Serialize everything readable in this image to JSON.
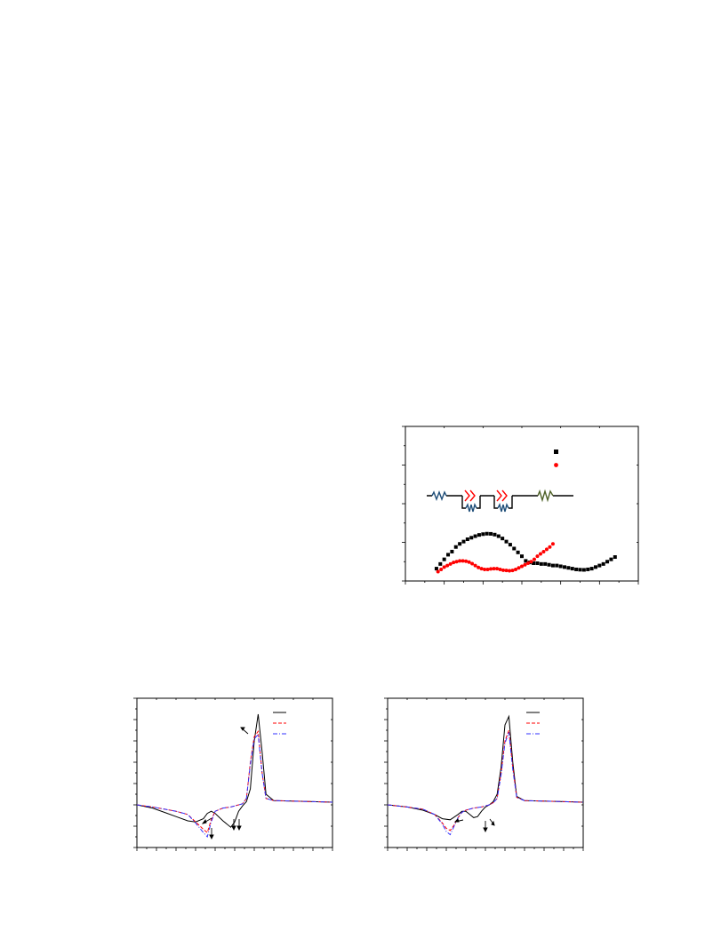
{
  "chart_data": [
    {
      "type": "scatter",
      "xlim": [
        0,
        3.0
      ],
      "ylim": [
        0,
        1.0
      ],
      "series": [
        {
          "color": "#000000",
          "marker": "square",
          "x": [
            0.4,
            0.45,
            0.5,
            0.55,
            0.6,
            0.65,
            0.7,
            0.75,
            0.8,
            0.85,
            0.9,
            0.95,
            1.0,
            1.05,
            1.1,
            1.15,
            1.2,
            1.25,
            1.3,
            1.35,
            1.4,
            1.45,
            1.5,
            1.55,
            1.6,
            1.65,
            1.7,
            1.75,
            1.8,
            1.85,
            1.9,
            1.95,
            2.0,
            2.05,
            2.1,
            2.15,
            2.2,
            2.25,
            2.3,
            2.35,
            2.4,
            2.45,
            2.5,
            2.55,
            2.6,
            2.65,
            2.7
          ],
          "y": [
            0.08,
            0.11,
            0.14,
            0.17,
            0.19,
            0.22,
            0.24,
            0.255,
            0.27,
            0.28,
            0.29,
            0.298,
            0.303,
            0.306,
            0.305,
            0.3,
            0.29,
            0.275,
            0.255,
            0.235,
            0.21,
            0.185,
            0.16,
            0.13,
            0.12,
            0.115,
            0.115,
            0.11,
            0.11,
            0.105,
            0.1,
            0.1,
            0.095,
            0.09,
            0.085,
            0.08,
            0.075,
            0.073,
            0.072,
            0.075,
            0.08,
            0.09,
            0.1,
            0.11,
            0.125,
            0.14,
            0.155
          ]
        },
        {
          "color": "#ff0000",
          "marker": "circle",
          "x": [
            0.42,
            0.46,
            0.5,
            0.54,
            0.58,
            0.62,
            0.66,
            0.7,
            0.74,
            0.78,
            0.82,
            0.86,
            0.9,
            0.94,
            0.98,
            1.02,
            1.06,
            1.1,
            1.14,
            1.18,
            1.22,
            1.26,
            1.3,
            1.34,
            1.38,
            1.42,
            1.46,
            1.5,
            1.54,
            1.58,
            1.62,
            1.66,
            1.7,
            1.74,
            1.78,
            1.82,
            1.86,
            1.9
          ],
          "y": [
            0.06,
            0.075,
            0.09,
            0.1,
            0.11,
            0.12,
            0.125,
            0.13,
            0.13,
            0.128,
            0.122,
            0.112,
            0.1,
            0.088,
            0.08,
            0.075,
            0.075,
            0.078,
            0.08,
            0.08,
            0.075,
            0.07,
            0.068,
            0.066,
            0.068,
            0.075,
            0.085,
            0.095,
            0.105,
            0.115,
            0.125,
            0.14,
            0.16,
            0.175,
            0.19,
            0.205,
            0.22,
            0.24
          ]
        }
      ]
    },
    {
      "type": "line",
      "xlim": [
        0,
        100
      ],
      "ylim": [
        -4,
        10
      ],
      "series": [
        {
          "color": "#000000",
          "style": "solid",
          "x": [
            0,
            8,
            14,
            20,
            26,
            30,
            34,
            36,
            38,
            40,
            44,
            48,
            50,
            52,
            54,
            56,
            58,
            60,
            62,
            64,
            66,
            70,
            80,
            90,
            100
          ],
          "y": [
            0,
            -0.3,
            -0.7,
            -1.1,
            -1.5,
            -1.6,
            -1.3,
            -0.8,
            -0.6,
            -0.8,
            -1.5,
            -2.1,
            -1.6,
            -0.6,
            -0.1,
            0.3,
            1.5,
            6.0,
            8.5,
            5.0,
            1.0,
            0.4,
            0.35,
            0.3,
            0.25
          ]
        },
        {
          "color": "#ff0000",
          "style": "dash",
          "x": [
            0,
            8,
            14,
            20,
            26,
            30,
            34,
            36,
            38,
            40,
            44,
            48,
            50,
            52,
            54,
            56,
            58,
            60,
            62,
            64,
            66,
            70,
            80,
            90,
            100
          ],
          "y": [
            0,
            -0.2,
            -0.4,
            -0.6,
            -0.9,
            -1.6,
            -2.3,
            -2.6,
            -1.4,
            -0.6,
            -0.3,
            -0.2,
            -0.1,
            0.0,
            0.1,
            0.6,
            4.0,
            6.4,
            6.9,
            3.0,
            0.6,
            0.4,
            0.35,
            0.3,
            0.25
          ]
        },
        {
          "color": "#3030ff",
          "style": "dashdot",
          "x": [
            0,
            8,
            14,
            20,
            26,
            30,
            34,
            36,
            38,
            40,
            44,
            48,
            50,
            52,
            54,
            56,
            58,
            60,
            62,
            64,
            66,
            70,
            80,
            90,
            100
          ],
          "y": [
            0,
            -0.2,
            -0.4,
            -0.6,
            -0.9,
            -1.7,
            -2.6,
            -3.0,
            -1.6,
            -0.6,
            -0.3,
            -0.2,
            -0.1,
            0.0,
            0.1,
            0.6,
            3.8,
            6.2,
            6.6,
            3.0,
            0.6,
            0.4,
            0.35,
            0.3,
            0.25
          ]
        }
      ]
    },
    {
      "type": "line",
      "xlim": [
        0,
        100
      ],
      "ylim": [
        -4,
        10
      ],
      "series": [
        {
          "color": "#000000",
          "style": "solid",
          "x": [
            0,
            10,
            18,
            24,
            28,
            32,
            36,
            38,
            40,
            42,
            44,
            46,
            48,
            50,
            52,
            54,
            56,
            58,
            60,
            62,
            64,
            66,
            70,
            80,
            90,
            100
          ],
          "y": [
            0,
            -0.2,
            -0.5,
            -0.9,
            -1.3,
            -1.4,
            -0.9,
            -0.6,
            -0.6,
            -0.9,
            -1.2,
            -1.1,
            -0.6,
            -0.2,
            0.0,
            0.3,
            1.0,
            3.5,
            7.5,
            8.3,
            4.0,
            0.8,
            0.4,
            0.35,
            0.3,
            0.25
          ]
        },
        {
          "color": "#ff0000",
          "style": "dash",
          "x": [
            0,
            10,
            18,
            24,
            28,
            30,
            32,
            34,
            36,
            38,
            40,
            44,
            48,
            50,
            52,
            54,
            56,
            58,
            60,
            62,
            64,
            66,
            70,
            80,
            90,
            100
          ],
          "y": [
            0,
            -0.2,
            -0.4,
            -0.9,
            -1.7,
            -2.2,
            -2.4,
            -1.9,
            -1.2,
            -0.7,
            -0.5,
            -0.3,
            -0.2,
            -0.1,
            0.0,
            0.2,
            0.6,
            3.0,
            6.0,
            7.0,
            3.5,
            0.7,
            0.4,
            0.35,
            0.3,
            0.25
          ]
        },
        {
          "color": "#3030ff",
          "style": "dashdot",
          "x": [
            0,
            10,
            18,
            24,
            28,
            30,
            32,
            34,
            36,
            38,
            40,
            44,
            48,
            50,
            52,
            54,
            56,
            58,
            60,
            62,
            64,
            66,
            70,
            80,
            90,
            100
          ],
          "y": [
            0,
            -0.2,
            -0.4,
            -0.9,
            -1.8,
            -2.5,
            -2.8,
            -2.0,
            -1.2,
            -0.7,
            -0.5,
            -0.3,
            -0.2,
            -0.1,
            0.0,
            0.2,
            0.6,
            2.8,
            5.8,
            6.8,
            3.3,
            0.7,
            0.4,
            0.35,
            0.3,
            0.25
          ]
        }
      ]
    }
  ]
}
